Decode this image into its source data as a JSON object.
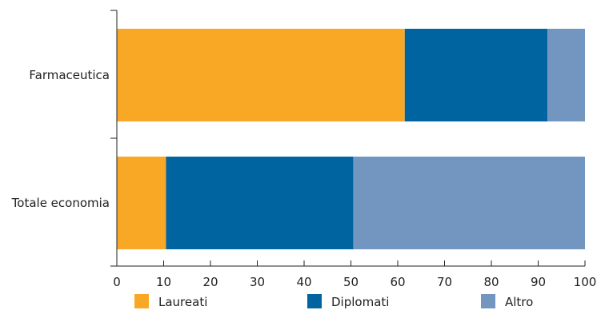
{
  "chart_data": {
    "type": "bar",
    "orientation": "horizontal",
    "stacked": true,
    "categories": [
      "Farmaceutica",
      "Totale economia"
    ],
    "series": [
      {
        "name": "Laureati",
        "values": [
          61.5,
          10.5
        ],
        "color": "#F9A825"
      },
      {
        "name": "Diplomati",
        "values": [
          30.5,
          40
        ],
        "color": "#0064A0"
      },
      {
        "name": "Altro",
        "values": [
          8,
          49.5
        ],
        "color": "#7396C0"
      }
    ],
    "xlim": [
      0,
      100
    ],
    "xticks": [
      "0",
      "10",
      "20",
      "30",
      "40",
      "50",
      "60",
      "70",
      "80",
      "90",
      "100"
    ],
    "title": "",
    "xlabel": "",
    "ylabel": "",
    "grid": false,
    "legend_position": "bottom"
  }
}
